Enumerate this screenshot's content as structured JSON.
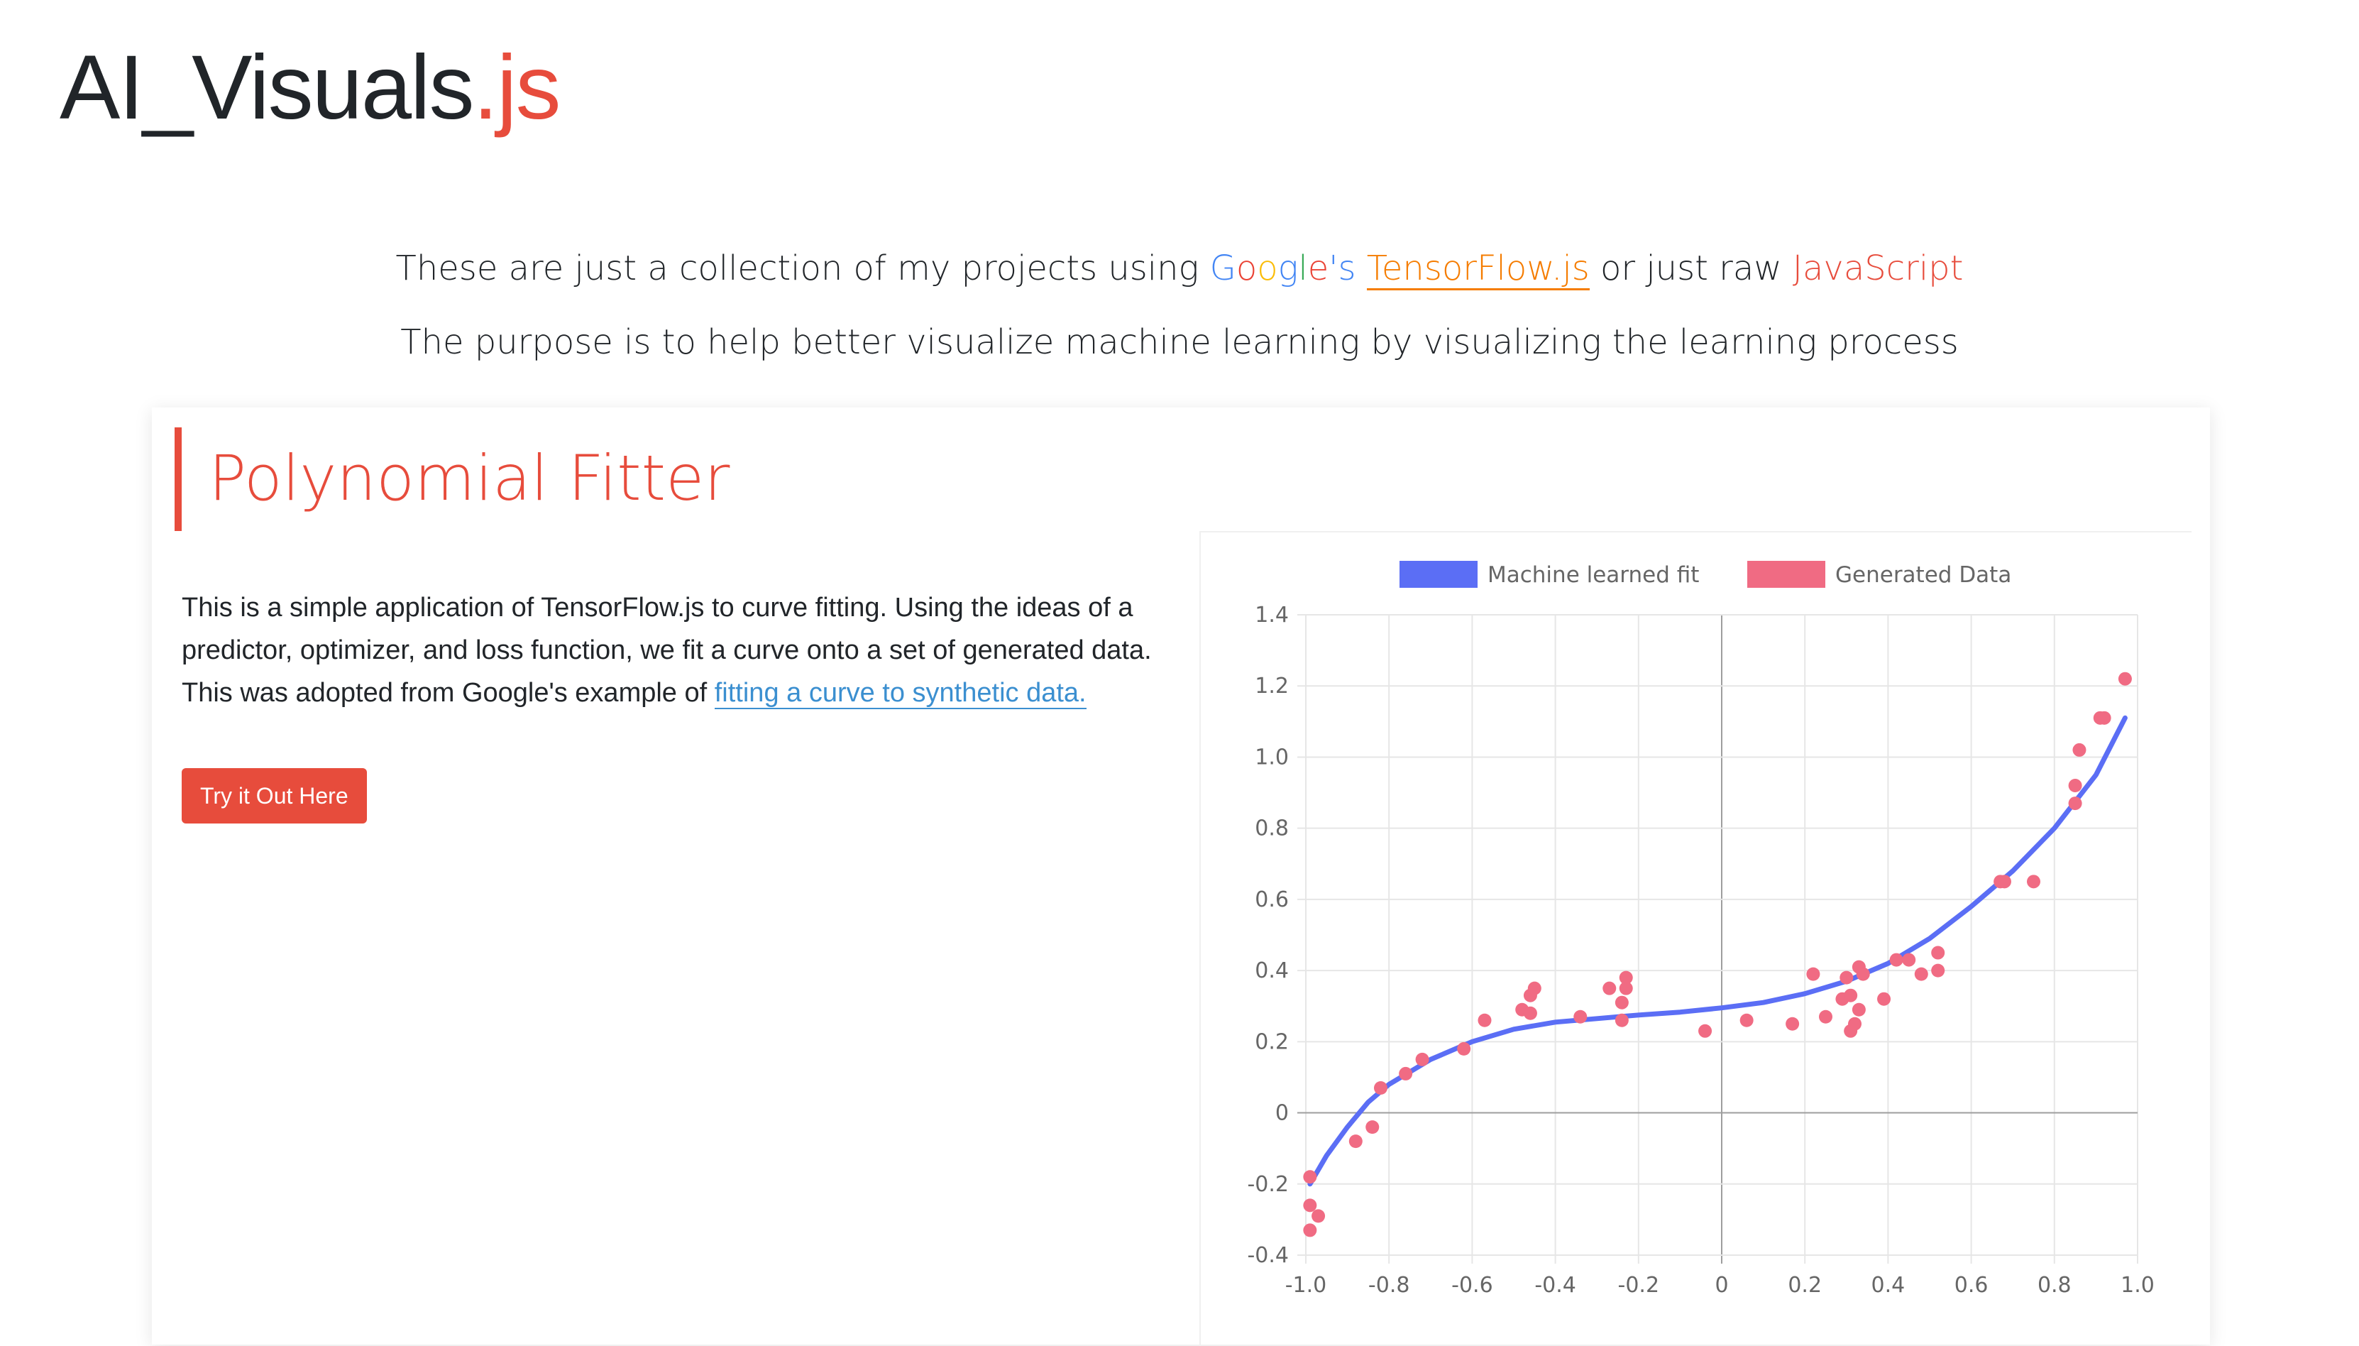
{
  "logo": {
    "text_main": "AI_Visuals",
    "text_accent": ".js"
  },
  "intro": {
    "line1_prefix": "These are just a collection of my projects using ",
    "google_letters": [
      "G",
      "o",
      "o",
      "g",
      "l",
      "e"
    ],
    "google_suffix": "'s ",
    "tensorflow_link": "TensorFlow.js",
    "line1_middle": " or just raw ",
    "javascript_link": "JavaScript",
    "line2": "The purpose is to help better visualize machine learning by visualizing the learning process"
  },
  "card": {
    "title": "Polynomial Fitter",
    "description": "This is a simple application of TensorFlow.js to curve fitting. Using the ideas of a predictor, optimizer, and loss function, we fit a curve onto a set of generated data. This was adopted from Google's example of ",
    "description_link": "fitting a curve to synthetic data.",
    "button_label": "Try it Out Here"
  },
  "colors": {
    "accent": "#e74c3c",
    "fit_line": "#5b6ef5",
    "data_points": "#f06b83",
    "link": "#3b8fd0",
    "tensorflow": "#f57c00"
  },
  "chart_data": {
    "type": "scatter",
    "title": "",
    "xlabel": "",
    "ylabel": "",
    "xlim": [
      -1.0,
      1.0
    ],
    "ylim": [
      -0.4,
      1.4
    ],
    "x_ticks": [
      "-1.0",
      "-0.8",
      "-0.6",
      "-0.4",
      "-0.2",
      "0",
      "0.2",
      "0.4",
      "0.6",
      "0.8",
      "1.0"
    ],
    "y_ticks": [
      "1.4",
      "1.2",
      "1.0",
      "0.8",
      "0.6",
      "0.4",
      "0.2",
      "0",
      "-0.2",
      "-0.4"
    ],
    "grid": true,
    "legend_position": "top",
    "series": [
      {
        "name": "Machine learned fit",
        "kind": "line",
        "color": "#5b6ef5",
        "points": [
          [
            -0.99,
            -0.2
          ],
          [
            -0.95,
            -0.12
          ],
          [
            -0.9,
            -0.04
          ],
          [
            -0.85,
            0.03
          ],
          [
            -0.8,
            0.08
          ],
          [
            -0.7,
            0.15
          ],
          [
            -0.6,
            0.2
          ],
          [
            -0.5,
            0.235
          ],
          [
            -0.4,
            0.255
          ],
          [
            -0.3,
            0.265
          ],
          [
            -0.2,
            0.275
          ],
          [
            -0.1,
            0.283
          ],
          [
            0.0,
            0.295
          ],
          [
            0.1,
            0.31
          ],
          [
            0.2,
            0.335
          ],
          [
            0.3,
            0.37
          ],
          [
            0.4,
            0.42
          ],
          [
            0.5,
            0.49
          ],
          [
            0.6,
            0.58
          ],
          [
            0.7,
            0.68
          ],
          [
            0.8,
            0.8
          ],
          [
            0.9,
            0.95
          ],
          [
            0.97,
            1.11
          ]
        ]
      },
      {
        "name": "Generated Data",
        "kind": "scatter",
        "color": "#f06b83",
        "points": [
          [
            -0.99,
            -0.18
          ],
          [
            -0.99,
            -0.26
          ],
          [
            -0.99,
            -0.33
          ],
          [
            -0.97,
            -0.29
          ],
          [
            -0.88,
            -0.08
          ],
          [
            -0.84,
            -0.04
          ],
          [
            -0.82,
            0.07
          ],
          [
            -0.76,
            0.11
          ],
          [
            -0.72,
            0.15
          ],
          [
            -0.62,
            0.18
          ],
          [
            -0.57,
            0.26
          ],
          [
            -0.48,
            0.29
          ],
          [
            -0.46,
            0.28
          ],
          [
            -0.46,
            0.33
          ],
          [
            -0.45,
            0.35
          ],
          [
            -0.34,
            0.27
          ],
          [
            -0.27,
            0.35
          ],
          [
            -0.24,
            0.31
          ],
          [
            -0.24,
            0.26
          ],
          [
            -0.23,
            0.35
          ],
          [
            -0.23,
            0.38
          ],
          [
            -0.04,
            0.23
          ],
          [
            0.06,
            0.26
          ],
          [
            0.17,
            0.25
          ],
          [
            0.22,
            0.39
          ],
          [
            0.25,
            0.27
          ],
          [
            0.29,
            0.32
          ],
          [
            0.3,
            0.38
          ],
          [
            0.31,
            0.33
          ],
          [
            0.31,
            0.23
          ],
          [
            0.32,
            0.25
          ],
          [
            0.33,
            0.29
          ],
          [
            0.33,
            0.41
          ],
          [
            0.34,
            0.39
          ],
          [
            0.39,
            0.32
          ],
          [
            0.42,
            0.43
          ],
          [
            0.45,
            0.43
          ],
          [
            0.48,
            0.39
          ],
          [
            0.52,
            0.4
          ],
          [
            0.52,
            0.45
          ],
          [
            0.67,
            0.65
          ],
          [
            0.68,
            0.65
          ],
          [
            0.75,
            0.65
          ],
          [
            0.85,
            0.87
          ],
          [
            0.85,
            0.92
          ],
          [
            0.86,
            1.02
          ],
          [
            0.91,
            1.11
          ],
          [
            0.92,
            1.11
          ],
          [
            0.97,
            1.22
          ]
        ]
      }
    ]
  }
}
